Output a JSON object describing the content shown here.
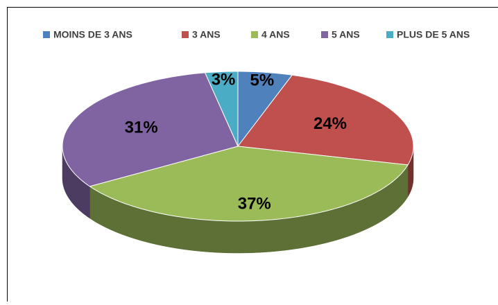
{
  "chart_data": {
    "type": "pie",
    "categories": [
      "MOINS DE 3 ANS",
      "3 ANS",
      "4 ANS",
      "5 ANS",
      "PLUS DE 5 ANS"
    ],
    "values": [
      5,
      24,
      37,
      31,
      3
    ],
    "value_labels": [
      "5%",
      "24%",
      "37%",
      "31%",
      "3%"
    ],
    "colors": [
      "#4f81bd",
      "#c0504d",
      "#9bbb59",
      "#8064a2",
      "#4bacc6"
    ],
    "legend": "top"
  }
}
